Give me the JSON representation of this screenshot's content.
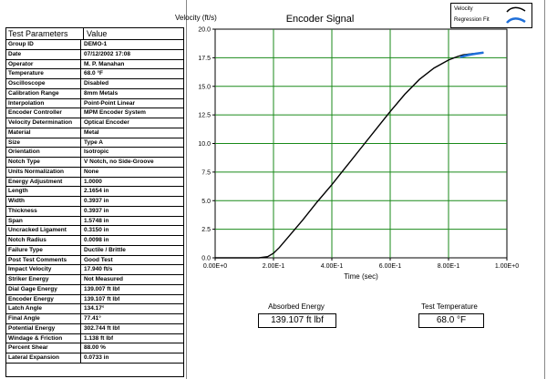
{
  "params": {
    "header_col1": "Test Parameters",
    "header_col2": "Value",
    "rows": [
      [
        "Group ID",
        "DEMO-1"
      ],
      [
        "Date",
        "07/12/2002 17:08"
      ],
      [
        "Operator",
        "M. P. Manahan"
      ],
      [
        "Temperature",
        "68.0 °F"
      ],
      [
        "Oscilloscope",
        "Disabled"
      ],
      [
        "Calibration Range",
        "8mm Metals"
      ],
      [
        "Interpolation",
        "Point-Point Linear"
      ],
      [
        "Encoder Controller",
        "MPM Encoder System"
      ],
      [
        "Velocity Determination",
        "Optical Encoder"
      ],
      [
        "Material",
        "Metal"
      ],
      [
        "Size",
        "Type A"
      ],
      [
        "Orientation",
        "Isotropic"
      ],
      [
        "Notch Type",
        "V Notch, no Side-Groove"
      ],
      [
        "Units Normalization",
        "None"
      ],
      [
        "Energy Adjustment",
        "1.0000"
      ],
      [
        "Length",
        "2.1654 in"
      ],
      [
        "Width",
        "0.3937 in"
      ],
      [
        "Thickness",
        "0.3937 in"
      ],
      [
        "Span",
        "1.5748 in"
      ],
      [
        "Uncracked Ligament",
        "0.3150 in"
      ],
      [
        "Notch Radius",
        "0.0098 in"
      ],
      [
        "Failure Type",
        "Ductile / Brittle"
      ],
      [
        "Post Test Comments",
        "Good Test"
      ],
      [
        "Impact Velocity",
        "17.940 ft/s"
      ],
      [
        "Striker Energy",
        "Not Measured"
      ],
      [
        "Dial Gage Energy",
        "139.007 ft lbf"
      ],
      [
        "Encoder Energy",
        "139.107 ft lbf"
      ],
      [
        "Latch Angle",
        "134.17°"
      ],
      [
        "Final Angle",
        "77.41°"
      ],
      [
        "Potential Energy",
        "302.744 ft lbf"
      ],
      [
        "Windage & Friction",
        "1.138 ft lbf"
      ],
      [
        "Percent Shear",
        "88.00 %"
      ],
      [
        "Lateral Expansion",
        "0.0733 in"
      ]
    ]
  },
  "chart_data": {
    "type": "line",
    "title": "Encoder Signal",
    "ylabel": "Velocity (ft/s)",
    "xlabel": "Time (sec)",
    "xlim": [
      0,
      1.0
    ],
    "ylim": [
      0,
      20
    ],
    "grid": true,
    "legend_placement": "top-right",
    "x_tick_labels": [
      "0.00E+0",
      "2.00E-1",
      "4.00E-1",
      "6.00E-1",
      "8.00E-1",
      "1.00E+0"
    ],
    "y_tick_labels": [
      "0.0",
      "2.5",
      "5.0",
      "7.5",
      "10.0",
      "12.5",
      "15.0",
      "17.5",
      "20.0"
    ],
    "series": [
      {
        "name": "Velocity",
        "color": "#000000",
        "x": [
          0.0,
          0.05,
          0.1,
          0.15,
          0.18,
          0.2,
          0.22,
          0.25,
          0.3,
          0.35,
          0.4,
          0.45,
          0.5,
          0.55,
          0.6,
          0.65,
          0.7,
          0.75,
          0.8,
          0.83,
          0.85,
          0.88,
          0.9,
          0.92
        ],
        "y": [
          0.0,
          0.0,
          0.0,
          0.0,
          0.1,
          0.4,
          0.9,
          1.8,
          3.3,
          4.9,
          6.4,
          8.0,
          9.6,
          11.2,
          12.8,
          14.3,
          15.6,
          16.6,
          17.3,
          17.6,
          17.75,
          17.85,
          17.9,
          17.95
        ]
      },
      {
        "name": "Regression Fit",
        "color": "#1e6fd9",
        "x": [
          0.84,
          0.86,
          0.88,
          0.9,
          0.92
        ],
        "y": [
          17.55,
          17.7,
          17.8,
          17.88,
          17.95
        ]
      }
    ]
  },
  "results": {
    "absorbed_label": "Absorbed Energy",
    "absorbed_value": "139.107 ft lbf",
    "temp_label": "Test Temperature",
    "temp_value": "68.0 °F"
  }
}
